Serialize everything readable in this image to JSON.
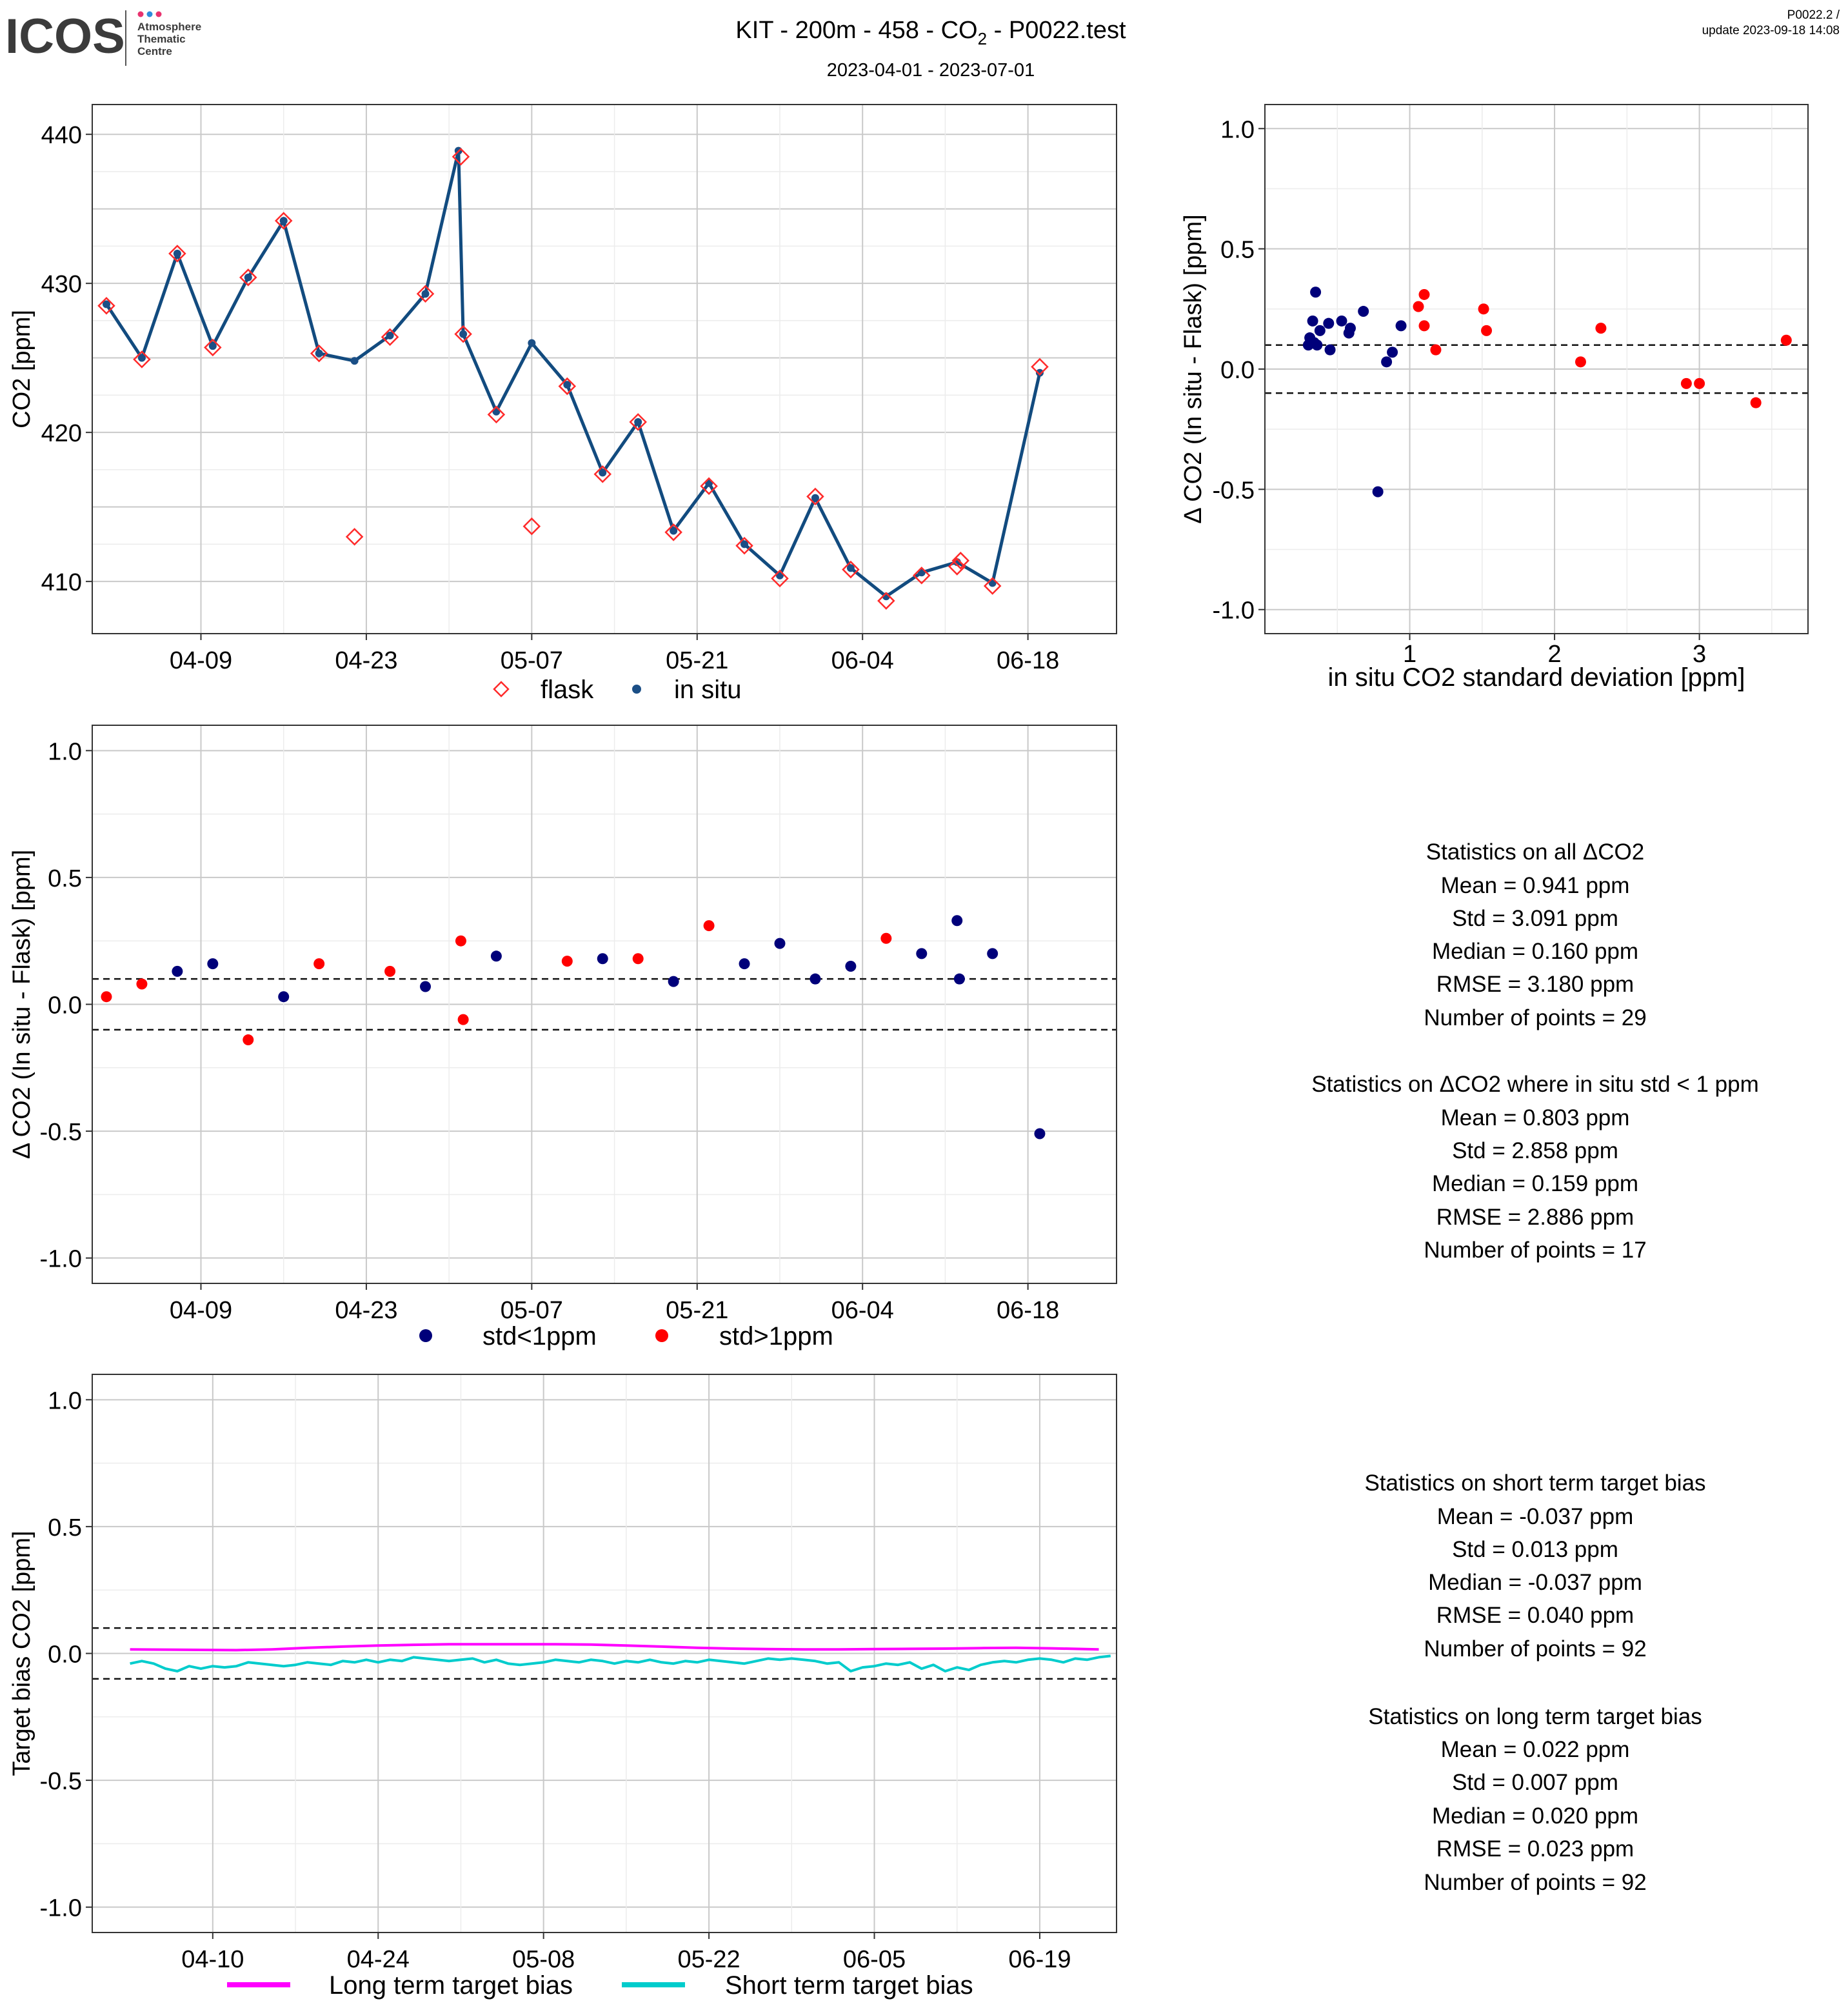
{
  "header": {
    "logo_text": "ICOS",
    "logo_sub": [
      "Atmosphere",
      "Thematic",
      "Centre"
    ],
    "title_prefix": "KIT - 200m - 458 - CO",
    "title_subscript": "2",
    "title_suffix": " - P0022.test",
    "date_range": "2023-04-01 - 2023-07-01",
    "version": "P0022.2 /",
    "update": "update  2023-09-18 14:08"
  },
  "colors": {
    "flask": "#ff2a2a",
    "insitu_line": "#124b7f",
    "insitu_point": "#1b4f86",
    "std_lt1": "#00007a",
    "std_gt1": "#ff0000",
    "long_term": "#ff00ff",
    "short_term": "#00cccc",
    "grid_major": "#c9c9c9",
    "grid_minor": "#ececec"
  },
  "chart_data": [
    {
      "id": "timeseries",
      "type": "line",
      "ylabel": "CO2 [ppm]",
      "ylim": [
        406.5,
        442
      ],
      "yticks": [
        410,
        420,
        430,
        440
      ],
      "xlim_days": [
        -1.2,
        85.5
      ],
      "xticks": [
        {
          "day": 8,
          "label": "04-09"
        },
        {
          "day": 22,
          "label": "04-23"
        },
        {
          "day": 36,
          "label": "05-07"
        },
        {
          "day": 50,
          "label": "05-21"
        },
        {
          "day": 64,
          "label": "06-04"
        },
        {
          "day": 78,
          "label": "06-18"
        }
      ],
      "legend": [
        {
          "name": "flask",
          "marker": "diamond"
        },
        {
          "name": "in situ",
          "marker": "dot"
        }
      ],
      "legend_position": "bottom",
      "insitu": [
        [
          0,
          428.6
        ],
        [
          3,
          425.0
        ],
        [
          6,
          432.0
        ],
        [
          9,
          425.8
        ],
        [
          12,
          430.4
        ],
        [
          15,
          434.2
        ],
        [
          18,
          425.3
        ],
        [
          21,
          424.8
        ],
        [
          24,
          426.5
        ],
        [
          27,
          429.3
        ],
        [
          29.8,
          438.9
        ],
        [
          30.2,
          426.6
        ],
        [
          33,
          421.4
        ],
        [
          36,
          426.0
        ],
        [
          39,
          423.2
        ],
        [
          42,
          417.3
        ],
        [
          45,
          420.7
        ],
        [
          48,
          413.4
        ],
        [
          51,
          416.6
        ],
        [
          54,
          412.5
        ],
        [
          57,
          410.4
        ],
        [
          60,
          415.6
        ],
        [
          63,
          410.9
        ],
        [
          66,
          409.0
        ],
        [
          69,
          410.6
        ],
        [
          72,
          411.3
        ],
        [
          75,
          409.9
        ],
        [
          79,
          424.0
        ]
      ],
      "flask": [
        [
          0,
          428.5
        ],
        [
          3,
          424.9
        ],
        [
          6,
          432.0
        ],
        [
          9,
          425.7
        ],
        [
          12,
          430.4
        ],
        [
          15,
          434.2
        ],
        [
          18,
          425.3
        ],
        [
          21,
          413.0
        ],
        [
          24,
          426.4
        ],
        [
          27,
          429.3
        ],
        [
          30,
          438.5
        ],
        [
          30.2,
          426.6
        ],
        [
          33,
          421.2
        ],
        [
          36,
          413.7
        ],
        [
          39,
          423.1
        ],
        [
          42,
          417.2
        ],
        [
          45,
          420.7
        ],
        [
          48,
          413.3
        ],
        [
          51,
          416.4
        ],
        [
          54,
          412.4
        ],
        [
          57,
          410.2
        ],
        [
          60,
          415.7
        ],
        [
          63,
          410.8
        ],
        [
          66,
          408.7
        ],
        [
          69,
          410.4
        ],
        [
          72,
          411.0
        ],
        [
          72.3,
          411.4
        ],
        [
          75,
          409.7
        ],
        [
          79,
          424.4
        ]
      ]
    },
    {
      "id": "scatter_std",
      "type": "scatter",
      "xlabel": "in situ CO2 standard deviation [ppm]",
      "ylabel": "Δ CO2 (In situ - Flask) [ppm]",
      "xlim": [
        0.0,
        3.75
      ],
      "ylim": [
        -1.1,
        1.1
      ],
      "xticks": [
        1,
        2,
        3
      ],
      "yticks": [
        -1.0,
        -0.5,
        0.0,
        0.5,
        1.0
      ],
      "ref_lines": [
        0.1,
        -0.1
      ],
      "lt1": [
        [
          0.35,
          0.32
        ],
        [
          0.33,
          0.2
        ],
        [
          0.38,
          0.16
        ],
        [
          0.44,
          0.19
        ],
        [
          0.53,
          0.2
        ],
        [
          0.59,
          0.17
        ],
        [
          0.58,
          0.15
        ],
        [
          0.68,
          0.24
        ],
        [
          0.94,
          0.18
        ],
        [
          0.31,
          0.13
        ],
        [
          0.3,
          0.1
        ],
        [
          0.36,
          0.1
        ],
        [
          0.45,
          0.08
        ],
        [
          0.88,
          0.07
        ],
        [
          0.84,
          0.03
        ],
        [
          0.78,
          -0.51
        ],
        [
          0.34,
          0.11
        ]
      ],
      "gt1": [
        [
          1.06,
          0.26
        ],
        [
          1.1,
          0.31
        ],
        [
          1.1,
          0.18
        ],
        [
          1.18,
          0.08
        ],
        [
          1.51,
          0.25
        ],
        [
          1.53,
          0.16
        ],
        [
          2.18,
          0.03
        ],
        [
          2.32,
          0.17
        ],
        [
          2.91,
          -0.06
        ],
        [
          3.39,
          -0.14
        ],
        [
          3.6,
          0.12
        ],
        [
          3.0,
          -0.06
        ]
      ]
    },
    {
      "id": "delta_time",
      "type": "scatter",
      "ylabel": "Δ CO2 (In situ - Flask) [ppm]",
      "ylim": [
        -1.1,
        1.1
      ],
      "yticks": [
        -1.0,
        -0.5,
        0.0,
        0.5,
        1.0
      ],
      "xlim_days": [
        -1.2,
        85.5
      ],
      "xticks": [
        {
          "day": 8,
          "label": "04-09"
        },
        {
          "day": 22,
          "label": "04-23"
        },
        {
          "day": 36,
          "label": "05-07"
        },
        {
          "day": 50,
          "label": "05-21"
        },
        {
          "day": 64,
          "label": "06-04"
        },
        {
          "day": 78,
          "label": "06-18"
        }
      ],
      "ref_lines": [
        0.1,
        -0.1
      ],
      "legend": [
        {
          "name": "std<1ppm",
          "color_key": "std_lt1"
        },
        {
          "name": "std>1ppm",
          "color_key": "std_gt1"
        }
      ],
      "legend_position": "bottom",
      "lt1": [
        [
          6,
          0.13
        ],
        [
          9,
          0.16
        ],
        [
          15,
          0.03
        ],
        [
          27,
          0.07
        ],
        [
          33,
          0.19
        ],
        [
          42,
          0.18
        ],
        [
          48,
          0.09
        ],
        [
          54,
          0.16
        ],
        [
          57,
          0.24
        ],
        [
          60,
          0.1
        ],
        [
          63,
          0.15
        ],
        [
          69,
          0.2
        ],
        [
          72,
          0.33
        ],
        [
          72.2,
          0.1
        ],
        [
          75,
          0.2
        ],
        [
          79,
          -0.51
        ]
      ],
      "gt1": [
        [
          0,
          0.03
        ],
        [
          3,
          0.08
        ],
        [
          12,
          -0.14
        ],
        [
          18,
          0.16
        ],
        [
          24,
          0.13
        ],
        [
          30,
          0.25
        ],
        [
          30.2,
          -0.06
        ],
        [
          39,
          0.17
        ],
        [
          45,
          0.18
        ],
        [
          51,
          0.31
        ],
        [
          66,
          0.26
        ]
      ]
    },
    {
      "id": "target_bias",
      "type": "line",
      "ylabel": "Target bias CO2 [ppm]",
      "ylim": [
        -1.1,
        1.1
      ],
      "yticks": [
        -1.0,
        -0.5,
        0.0,
        0.5,
        1.0
      ],
      "xlim_days": [
        -1.2,
        85.5
      ],
      "xticks": [
        {
          "day": 9,
          "label": "04-10"
        },
        {
          "day": 23,
          "label": "04-24"
        },
        {
          "day": 37,
          "label": "05-08"
        },
        {
          "day": 51,
          "label": "05-22"
        },
        {
          "day": 65,
          "label": "06-05"
        },
        {
          "day": 79,
          "label": "06-19"
        }
      ],
      "ref_lines": [
        0.1,
        -0.1
      ],
      "legend": [
        {
          "name": "Long term target bias",
          "color_key": "long_term"
        },
        {
          "name": "Short term target bias",
          "color_key": "short_term"
        }
      ],
      "legend_position": "bottom",
      "long_term": [
        [
          2,
          0.016
        ],
        [
          5,
          0.015
        ],
        [
          8,
          0.014
        ],
        [
          11,
          0.013
        ],
        [
          14,
          0.016
        ],
        [
          17,
          0.022
        ],
        [
          20,
          0.027
        ],
        [
          23,
          0.031
        ],
        [
          26,
          0.034
        ],
        [
          29,
          0.036
        ],
        [
          32,
          0.036
        ],
        [
          35,
          0.036
        ],
        [
          38,
          0.036
        ],
        [
          41,
          0.035
        ],
        [
          44,
          0.031
        ],
        [
          47,
          0.027
        ],
        [
          50,
          0.022
        ],
        [
          53,
          0.019
        ],
        [
          56,
          0.017
        ],
        [
          59,
          0.016
        ],
        [
          62,
          0.016
        ],
        [
          65,
          0.017
        ],
        [
          68,
          0.018
        ],
        [
          71,
          0.019
        ],
        [
          74,
          0.021
        ],
        [
          77,
          0.022
        ],
        [
          80,
          0.02
        ],
        [
          84,
          0.016
        ]
      ],
      "short_term": [
        [
          2,
          -0.04
        ],
        [
          3,
          -0.03
        ],
        [
          4,
          -0.04
        ],
        [
          5,
          -0.06
        ],
        [
          6,
          -0.07
        ],
        [
          7,
          -0.05
        ],
        [
          8,
          -0.06
        ],
        [
          9,
          -0.05
        ],
        [
          10,
          -0.055
        ],
        [
          11,
          -0.05
        ],
        [
          12,
          -0.035
        ],
        [
          13,
          -0.04
        ],
        [
          14,
          -0.045
        ],
        [
          15,
          -0.05
        ],
        [
          16,
          -0.045
        ],
        [
          17,
          -0.035
        ],
        [
          18,
          -0.04
        ],
        [
          19,
          -0.045
        ],
        [
          20,
          -0.03
        ],
        [
          21,
          -0.035
        ],
        [
          22,
          -0.025
        ],
        [
          23,
          -0.035
        ],
        [
          24,
          -0.025
        ],
        [
          25,
          -0.03
        ],
        [
          26,
          -0.015
        ],
        [
          27,
          -0.02
        ],
        [
          28,
          -0.025
        ],
        [
          29,
          -0.03
        ],
        [
          30,
          -0.025
        ],
        [
          31,
          -0.02
        ],
        [
          32,
          -0.035
        ],
        [
          33,
          -0.025
        ],
        [
          34,
          -0.04
        ],
        [
          35,
          -0.045
        ],
        [
          36,
          -0.04
        ],
        [
          37,
          -0.035
        ],
        [
          38,
          -0.025
        ],
        [
          39,
          -0.03
        ],
        [
          40,
          -0.035
        ],
        [
          41,
          -0.025
        ],
        [
          42,
          -0.03
        ],
        [
          43,
          -0.04
        ],
        [
          44,
          -0.03
        ],
        [
          45,
          -0.035
        ],
        [
          46,
          -0.025
        ],
        [
          47,
          -0.035
        ],
        [
          48,
          -0.04
        ],
        [
          49,
          -0.03
        ],
        [
          50,
          -0.035
        ],
        [
          51,
          -0.025
        ],
        [
          52,
          -0.03
        ],
        [
          53,
          -0.035
        ],
        [
          54,
          -0.04
        ],
        [
          55,
          -0.03
        ],
        [
          56,
          -0.02
        ],
        [
          57,
          -0.025
        ],
        [
          58,
          -0.02
        ],
        [
          59,
          -0.025
        ],
        [
          60,
          -0.03
        ],
        [
          61,
          -0.04
        ],
        [
          62,
          -0.035
        ],
        [
          63,
          -0.07
        ],
        [
          64,
          -0.055
        ],
        [
          65,
          -0.05
        ],
        [
          66,
          -0.04
        ],
        [
          67,
          -0.045
        ],
        [
          68,
          -0.035
        ],
        [
          69,
          -0.06
        ],
        [
          70,
          -0.045
        ],
        [
          71,
          -0.07
        ],
        [
          72,
          -0.055
        ],
        [
          73,
          -0.065
        ],
        [
          74,
          -0.045
        ],
        [
          75,
          -0.035
        ],
        [
          76,
          -0.03
        ],
        [
          77,
          -0.035
        ],
        [
          78,
          -0.025
        ],
        [
          79,
          -0.02
        ],
        [
          80,
          -0.025
        ],
        [
          81,
          -0.035
        ],
        [
          82,
          -0.02
        ],
        [
          83,
          -0.025
        ],
        [
          84,
          -0.015
        ],
        [
          85,
          -0.01
        ]
      ]
    }
  ],
  "stats": {
    "all_delta": {
      "title": "Statistics on all ΔCO2",
      "lines": [
        "Mean =  0.941 ppm",
        "Std =  3.091 ppm",
        "Median =  0.160 ppm",
        "RMSE =  3.180 ppm",
        "Number of points =  29"
      ]
    },
    "delta_std_lt1": {
      "title": "Statistics on ΔCO2 where in situ std < 1 ppm",
      "lines": [
        "Mean =  0.803 ppm",
        "Std =  2.858 ppm",
        "Median =  0.159 ppm",
        "RMSE =  2.886 ppm",
        "Number of points =  17"
      ]
    },
    "short_term": {
      "title": "Statistics on short term target bias",
      "lines": [
        "Mean =  -0.037 ppm",
        "Std =  0.013 ppm",
        "Median =  -0.037 ppm",
        "RMSE =  0.040 ppm",
        "Number of points =  92"
      ]
    },
    "long_term": {
      "title": "Statistics on long term target bias",
      "lines": [
        "Mean =  0.022 ppm",
        "Std =  0.007 ppm",
        "Median =  0.020 ppm",
        "RMSE =  0.023 ppm",
        "Number of points =  92"
      ]
    }
  }
}
